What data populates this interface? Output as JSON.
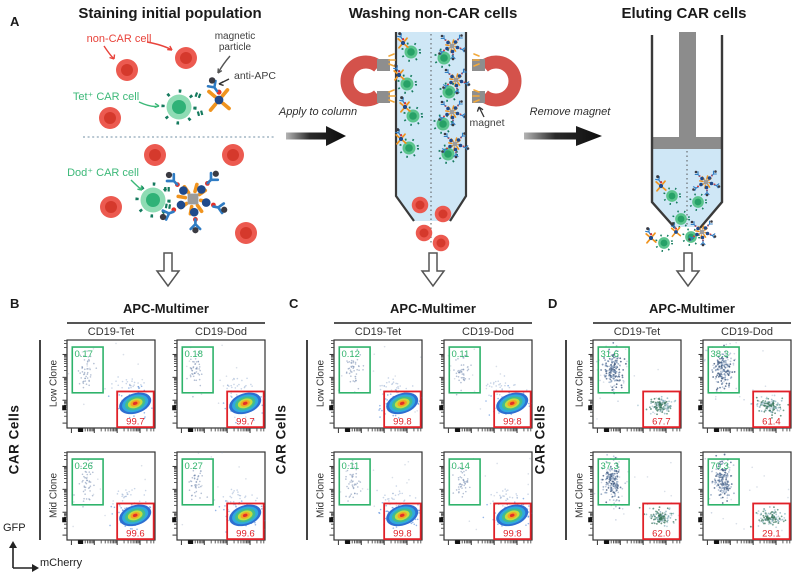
{
  "workflow": {
    "panel_label": "A",
    "steps": [
      {
        "title": "Staining initial population"
      },
      {
        "title": "Washing non-CAR cells"
      },
      {
        "title": "Eluting CAR cells"
      }
    ],
    "annotations": {
      "non_car_cell": "non-CAR cell",
      "magnetic_particle": "magnetic particle",
      "anti_apc": "anti-APC",
      "tet_car_cell": "Tet⁺ CAR cell",
      "dod_car_cell": "Dod⁺ CAR cell",
      "apply_to_column": "Apply to column",
      "magnet": "magnet",
      "remove_magnet": "Remove magnet"
    }
  },
  "flow_axis": {
    "y_label": "GFP",
    "x_label": "mCherry"
  },
  "colors": {
    "gate_green": "#2fb36b",
    "gate_red": "#e02128",
    "magnet_red": "#d4524b",
    "column_fluid": "#cfe7f6",
    "car_cell_green": "#2fb277",
    "non_car_red": "#e8433b",
    "multimer_orange": "#f0941f",
    "multimer_navy": "#1f4a8c",
    "antibody_blue": "#2f7cc4",
    "spark_yellow": "#f2a93b"
  },
  "chart_data": [
    {
      "type": "scatter",
      "panel": "B",
      "title": "APC-Multimer",
      "y_axis_label": "CAR Cells",
      "columns": [
        "CD19-Tet",
        "CD19-Dod"
      ],
      "rows": [
        "Low Clone",
        "Mid Clone"
      ],
      "x_axis": "mCherry",
      "y_axis": "GFP",
      "dense_gate": "red",
      "gate_values": [
        [
          {
            "green": "0.17",
            "red": "99.7"
          },
          {
            "green": "0.18",
            "red": "99.7"
          }
        ],
        [
          {
            "green": "0.26",
            "red": "99.6"
          },
          {
            "green": "0.27",
            "red": "99.6"
          }
        ]
      ]
    },
    {
      "type": "scatter",
      "panel": "C",
      "title": "APC-Multimer",
      "y_axis_label": "CAR Cells",
      "columns": [
        "CD19-Tet",
        "CD19-Dod"
      ],
      "rows": [
        "Low Clone",
        "Mid Clone"
      ],
      "x_axis": "mCherry",
      "y_axis": "GFP",
      "dense_gate": "red",
      "gate_values": [
        [
          {
            "green": "0.12",
            "red": "99.8"
          },
          {
            "green": "0.11",
            "red": "99.8"
          }
        ],
        [
          {
            "green": "0.11",
            "red": "99.8"
          },
          {
            "green": "0.14",
            "red": "99.8"
          }
        ]
      ]
    },
    {
      "type": "scatter",
      "panel": "D",
      "title": "APC-Multimer",
      "y_axis_label": "CAR Cells",
      "columns": [
        "CD19-Tet",
        "CD19-Dod"
      ],
      "rows": [
        "Low Clone",
        "Mid Clone"
      ],
      "x_axis": "mCherry",
      "y_axis": "GFP",
      "dense_gate": "green",
      "gate_values": [
        [
          {
            "green": "31.6",
            "red": "67.7"
          },
          {
            "green": "38.3",
            "red": "61.4"
          }
        ],
        [
          {
            "green": "37.3",
            "red": "62.0"
          },
          {
            "green": "70.3",
            "red": "29.1"
          }
        ]
      ]
    }
  ]
}
